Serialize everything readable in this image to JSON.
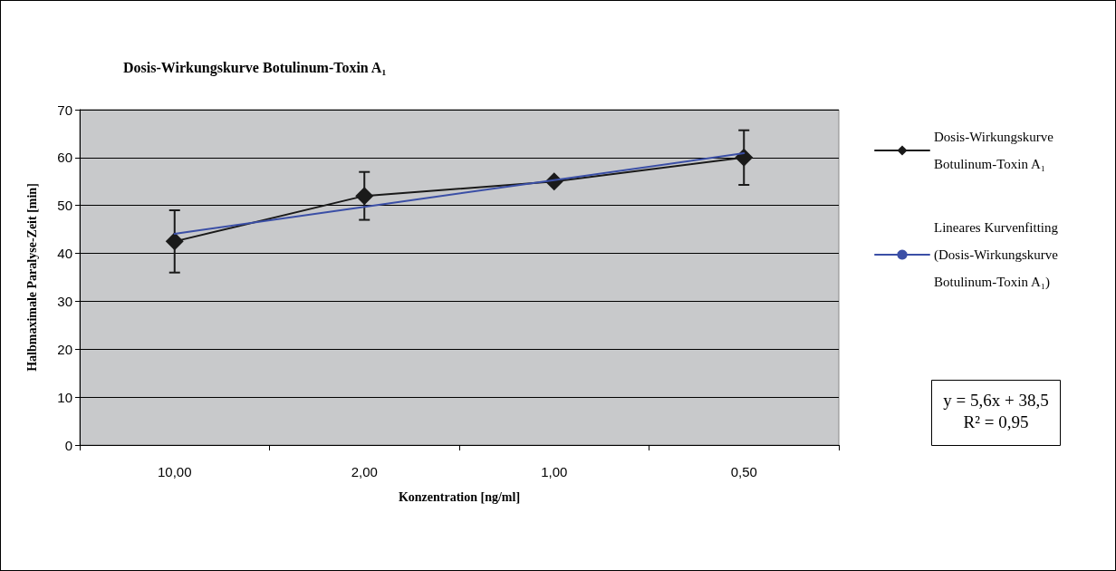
{
  "chart_data": {
    "type": "line",
    "title": "Dosis-Wirkungskurve Botulinum-Toxin A₁",
    "xlabel": "Konzentration [ng/ml]",
    "ylabel": "Halbmaximale Paralyse-Zeit [min]",
    "categories": [
      "10,00",
      "2,00",
      "1,00",
      "0,50"
    ],
    "series": [
      {
        "name": "Dosis-Wirkungskurve Botulinum-Toxin A₁",
        "color": "#1a1a1a",
        "values": [
          42.5,
          52,
          55,
          60
        ],
        "errors": [
          [
            36,
            49
          ],
          [
            47,
            57
          ],
          null,
          [
            54.3,
            65.7
          ]
        ],
        "marker": "diamond"
      },
      {
        "name": "Lineares Kurvenfitting (Dosis-Wirkungskurve Botulinum-Toxin A₁)",
        "color": "#3b4fa6",
        "values": [
          44.1,
          49.7,
          55.3,
          60.9
        ],
        "marker": "none"
      }
    ],
    "ylim": [
      0,
      70
    ],
    "yticks": [
      0,
      10,
      20,
      30,
      40,
      50,
      60,
      70
    ],
    "grid": "y",
    "legend": "right",
    "line_style": "solid",
    "annotations": [
      "y = 5,6x + 38,5",
      "R² = 0,95"
    ]
  }
}
